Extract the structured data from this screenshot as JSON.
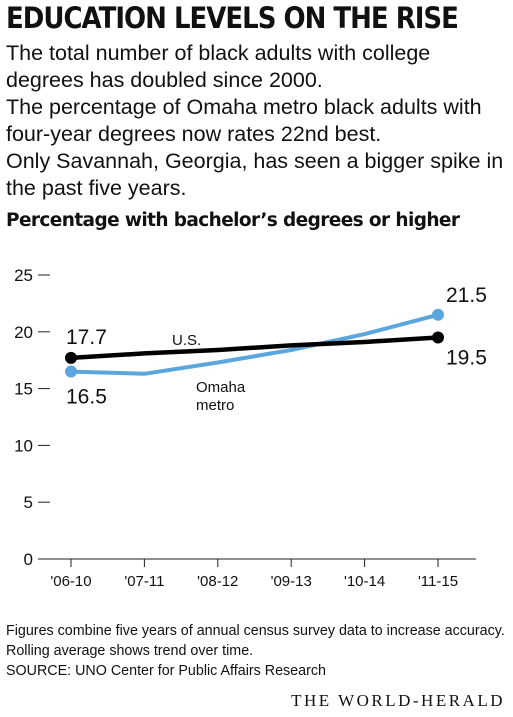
{
  "title": "EDUCATION LEVELS ON THE RISE",
  "intro": [
    "The total number of black adults with college degrees has doubled since 2000.",
    "The percentage of Omaha metro black adults with four-year degrees now rates 22nd best.",
    "Only Savannah, Georgia, has seen a bigger spike in the past five years."
  ],
  "notes": [
    "Figures  combine five years of annual census survey data to increase accuracy. Rolling average shows trend over time.",
    "SOURCE: UNO Center for Public Affairs Research"
  ],
  "credit": "THE WORLD-HERALD",
  "colors": {
    "us": "#000000",
    "omaha": "#5aa6dd"
  },
  "chart_data": {
    "type": "line",
    "title": "Percentage with bachelor’s degrees or higher",
    "categories": [
      "'06-10",
      "'07-11",
      "'08-12",
      "'09-13",
      "'10-14",
      "'11-15"
    ],
    "ylim": [
      0,
      25
    ],
    "yticks": [
      0,
      5,
      10,
      15,
      20,
      25
    ],
    "grid": false,
    "series": [
      {
        "name": "U.S.",
        "values": [
          17.7,
          18.1,
          18.4,
          18.8,
          19.1,
          19.5
        ],
        "start_label": "17.7",
        "end_label": "19.5"
      },
      {
        "name": "Omaha metro",
        "name_lines": [
          "Omaha",
          "metro"
        ],
        "values": [
          16.5,
          16.3,
          17.3,
          18.4,
          19.8,
          21.5
        ],
        "start_label": "16.5",
        "end_label": "21.5"
      }
    ]
  }
}
